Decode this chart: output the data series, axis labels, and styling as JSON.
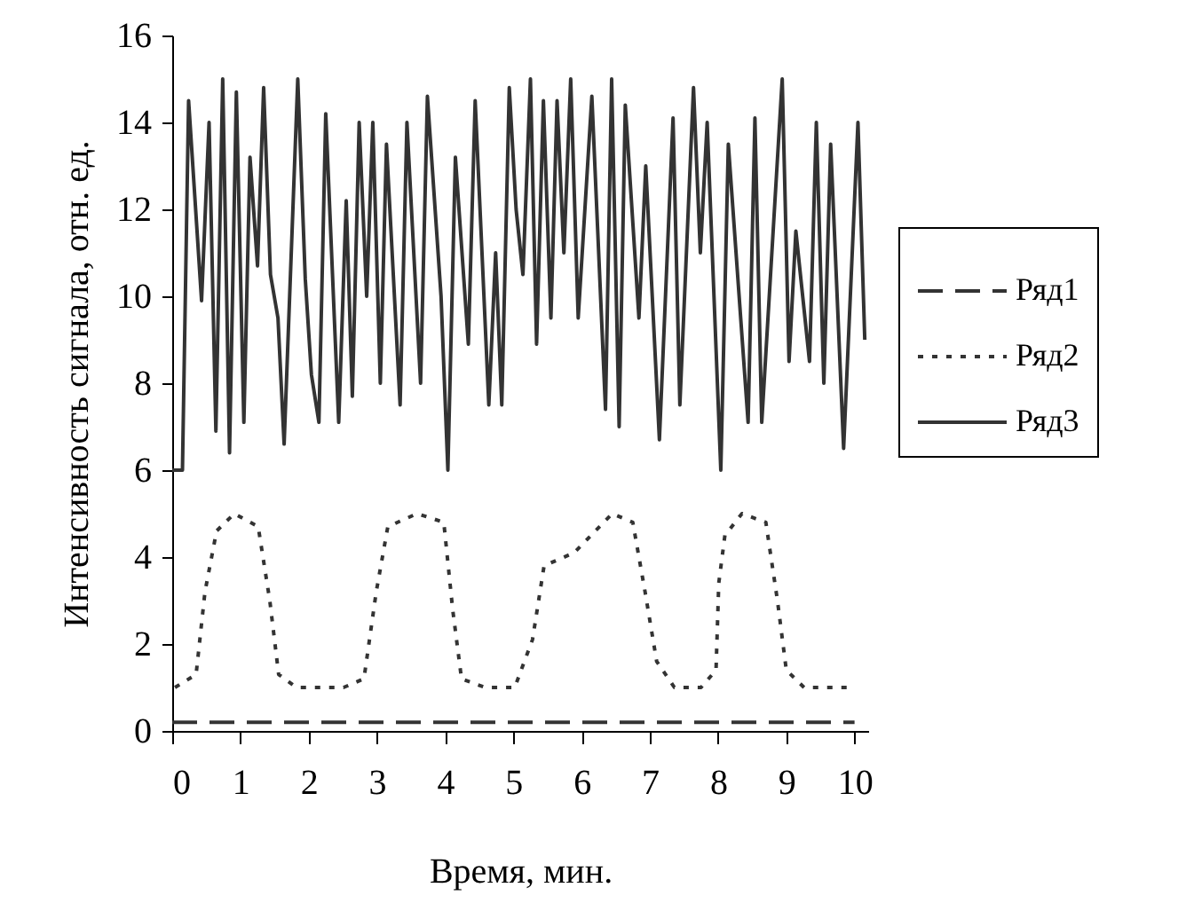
{
  "chart_data": {
    "type": "line",
    "xlabel": "Время, мин.",
    "ylabel": "Интенсивность сигнала, отн. ед.",
    "xlim": [
      0,
      10.2
    ],
    "xticks": [
      0,
      1,
      2,
      3,
      4,
      5,
      6,
      7,
      8,
      9,
      10
    ],
    "ylim": [
      0,
      16
    ],
    "yticks": [
      0,
      2,
      4,
      6,
      8,
      10,
      12,
      14,
      16
    ],
    "grid": false,
    "legend": "right",
    "marker": "none",
    "series": [
      {
        "name": "Ряд1",
        "color": "#333333",
        "line_style": "dashed",
        "x": [
          0,
          10
        ],
        "values": [
          0.2,
          0.2
        ]
      },
      {
        "name": "Ряд2",
        "color": "#333333",
        "line_style": "dotted",
        "x": [
          0.04,
          0.35,
          0.48,
          0.65,
          0.91,
          1.26,
          1.43,
          1.56,
          1.82,
          2.51,
          2.81,
          2.99,
          3.16,
          3.59,
          3.98,
          4.11,
          4.24,
          4.59,
          5.02,
          5.28,
          5.45,
          5.89,
          6.45,
          6.75,
          6.93,
          7.1,
          7.36,
          7.75,
          7.97,
          8.01,
          8.1,
          8.35,
          8.7,
          8.87,
          9.0,
          9.26,
          9.91
        ],
        "values": [
          1,
          1.3,
          3.2,
          4.6,
          5,
          4.7,
          3.0,
          1.3,
          1,
          1,
          1.2,
          3.2,
          4.7,
          5,
          4.8,
          2.8,
          1.2,
          1,
          1,
          2.1,
          3.8,
          4.1,
          5,
          4.8,
          3.2,
          1.6,
          1,
          1,
          1.4,
          3.4,
          4.5,
          5,
          4.8,
          3,
          1.4,
          1,
          1
        ]
      },
      {
        "name": "Ряд3",
        "color": "#333333",
        "line_style": "solid",
        "x": [
          0,
          0.15,
          0.24,
          0.43,
          0.54,
          0.64,
          0.74,
          0.84,
          0.94,
          1.05,
          1.14,
          1.25,
          1.34,
          1.44,
          1.55,
          1.64,
          1.84,
          1.95,
          2.04,
          2.15,
          2.25,
          2.44,
          2.55,
          2.64,
          2.74,
          2.85,
          2.94,
          3.05,
          3.14,
          3.34,
          3.44,
          3.64,
          3.74,
          3.94,
          4.04,
          4.15,
          4.34,
          4.44,
          4.64,
          4.74,
          4.83,
          4.94,
          5.04,
          5.14,
          5.25,
          5.34,
          5.44,
          5.55,
          5.64,
          5.74,
          5.84,
          5.95,
          6.15,
          6.35,
          6.44,
          6.55,
          6.64,
          6.84,
          6.94,
          7.14,
          7.34,
          7.44,
          7.64,
          7.74,
          7.84,
          8.04,
          8.15,
          8.44,
          8.54,
          8.64,
          8.94,
          9.04,
          9.14,
          9.34,
          9.44,
          9.55,
          9.65,
          9.84,
          10.05,
          10.15
        ],
        "values": [
          6,
          6,
          14.5,
          9.9,
          14,
          6.9,
          15,
          6.4,
          14.7,
          7.1,
          13.2,
          10.7,
          14.8,
          10.5,
          9.5,
          6.6,
          15,
          10.4,
          8.2,
          7.1,
          14.2,
          7.1,
          12.2,
          7.7,
          14,
          10,
          14,
          8,
          13.5,
          7.5,
          14,
          8,
          14.6,
          10,
          6,
          13.2,
          8.9,
          14.5,
          7.5,
          11,
          7.5,
          14.8,
          12,
          10.5,
          15,
          8.9,
          14.5,
          9.5,
          14.5,
          11,
          15,
          9.5,
          14.6,
          7.4,
          15,
          7,
          14.4,
          9.5,
          13,
          6.7,
          14.1,
          7.5,
          14.8,
          11,
          14,
          6,
          13.5,
          7.1,
          14.1,
          7.1,
          15,
          8.5,
          11.5,
          8.5,
          14,
          8,
          13.5,
          6.5,
          14,
          9
        ]
      }
    ]
  }
}
